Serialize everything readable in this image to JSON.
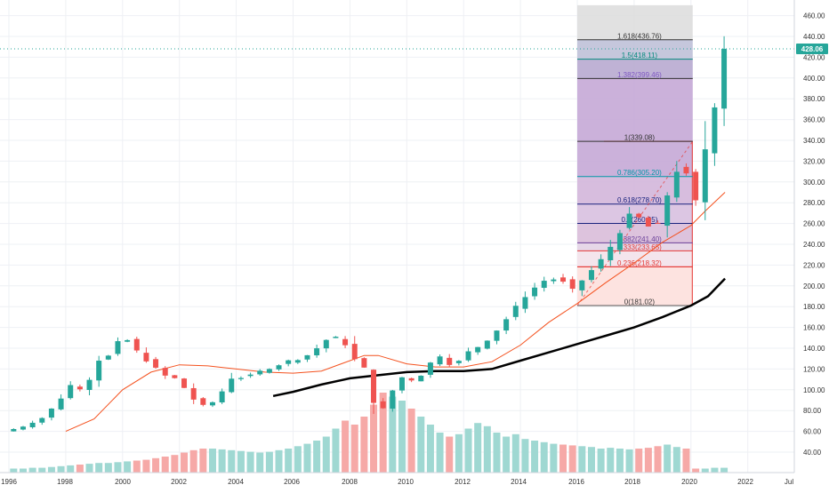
{
  "chart_data": {
    "type": "candlestick",
    "interval": "monthly",
    "x_ticks": [
      "1996",
      "1998",
      "2000",
      "2002",
      "2004",
      "2006",
      "2008",
      "2010",
      "2012",
      "2014",
      "2016",
      "2018",
      "2020",
      "2022",
      "Jul"
    ],
    "y_ticks": [
      40,
      60,
      80,
      100,
      120,
      140,
      160,
      180,
      200,
      220,
      240,
      260,
      280,
      300,
      320,
      340,
      360,
      380,
      400,
      420,
      440,
      460
    ],
    "y_tick_labels": [
      "40.00",
      "60.00",
      "80.00",
      "100.00",
      "120.00",
      "140.00",
      "160.00",
      "180.00",
      "200.00",
      "220.00",
      "240.00",
      "260.00",
      "280.00",
      "300.00",
      "320.00",
      "340.00",
      "360.00",
      "380.00",
      "400.00",
      "420.00",
      "440.00",
      "460.00"
    ],
    "ylim": [
      30,
      470
    ],
    "xlim": [
      1996.0,
      2022.8
    ],
    "last_price": 428.06,
    "last_price_label": "428.06",
    "colors": {
      "up": "#26a69a",
      "down": "#ef5350",
      "ma_fast": "#f4511e",
      "ma_slow": "#000000"
    },
    "price_anchors": [
      [
        1996.0,
        60
      ],
      [
        1996.6,
        64
      ],
      [
        1997.3,
        72
      ],
      [
        1997.9,
        88
      ],
      [
        1998.4,
        107
      ],
      [
        1998.8,
        98
      ],
      [
        1999.3,
        128
      ],
      [
        1999.7,
        133
      ],
      [
        2000.0,
        146
      ],
      [
        2000.4,
        148
      ],
      [
        2000.8,
        132
      ],
      [
        2001.2,
        124
      ],
      [
        2001.6,
        114
      ],
      [
        2002.0,
        111
      ],
      [
        2002.4,
        100
      ],
      [
        2002.8,
        86
      ],
      [
        2003.2,
        84
      ],
      [
        2003.6,
        96
      ],
      [
        2004.0,
        111
      ],
      [
        2004.5,
        112
      ],
      [
        2005.0,
        118
      ],
      [
        2005.5,
        122
      ],
      [
        2006.0,
        128
      ],
      [
        2006.5,
        130
      ],
      [
        2007.0,
        140
      ],
      [
        2007.5,
        152
      ],
      [
        2007.9,
        148
      ],
      [
        2008.3,
        130
      ],
      [
        2008.7,
        120
      ],
      [
        2009.0,
        88
      ],
      [
        2009.2,
        73
      ],
      [
        2009.5,
        93
      ],
      [
        2010.0,
        112
      ],
      [
        2010.5,
        108
      ],
      [
        2011.0,
        126
      ],
      [
        2011.4,
        134
      ],
      [
        2011.8,
        120
      ],
      [
        2012.2,
        135
      ],
      [
        2012.6,
        140
      ],
      [
        2013.0,
        148
      ],
      [
        2013.5,
        162
      ],
      [
        2014.0,
        180
      ],
      [
        2014.5,
        195
      ],
      [
        2015.0,
        205
      ],
      [
        2015.5,
        207
      ],
      [
        2016.0,
        196
      ],
      [
        2016.5,
        210
      ],
      [
        2017.0,
        225
      ],
      [
        2017.5,
        244
      ],
      [
        2018.0,
        268
      ],
      [
        2018.4,
        265
      ],
      [
        2018.9,
        250
      ],
      [
        2019.3,
        285
      ],
      [
        2019.8,
        320
      ],
      [
        2020.1,
        300
      ],
      [
        2020.2,
        258
      ],
      [
        2020.5,
        310
      ],
      [
        2020.9,
        362
      ],
      [
        2021.2,
        396
      ],
      [
        2021.3,
        428.06
      ]
    ],
    "ma_fast": [
      [
        1998.0,
        60
      ],
      [
        1999.0,
        72
      ],
      [
        2000.0,
        100
      ],
      [
        2001.0,
        117
      ],
      [
        2002.0,
        124
      ],
      [
        2003.0,
        123
      ],
      [
        2004.0,
        120
      ],
      [
        2005.0,
        117
      ],
      [
        2006.0,
        116
      ],
      [
        2007.0,
        118
      ],
      [
        2007.8,
        126
      ],
      [
        2008.5,
        133
      ],
      [
        2009.0,
        133
      ],
      [
        2010.0,
        125
      ],
      [
        2011.0,
        122
      ],
      [
        2012.0,
        122
      ],
      [
        2013.0,
        127
      ],
      [
        2014.0,
        143
      ],
      [
        2015.0,
        165
      ],
      [
        2016.0,
        183
      ],
      [
        2017.0,
        203
      ],
      [
        2018.0,
        222
      ],
      [
        2019.0,
        242
      ],
      [
        2020.0,
        258
      ],
      [
        2020.5,
        272
      ],
      [
        2021.2,
        290
      ]
    ],
    "ma_slow": [
      [
        2005.3,
        94
      ],
      [
        2006.0,
        98
      ],
      [
        2007.0,
        105
      ],
      [
        2008.0,
        111
      ],
      [
        2009.0,
        114
      ],
      [
        2010.0,
        117
      ],
      [
        2011.0,
        118
      ],
      [
        2012.0,
        118
      ],
      [
        2013.0,
        120
      ],
      [
        2014.0,
        128
      ],
      [
        2015.0,
        136
      ],
      [
        2016.0,
        144
      ],
      [
        2017.0,
        152
      ],
      [
        2018.0,
        160
      ],
      [
        2019.0,
        170
      ],
      [
        2020.0,
        181
      ],
      [
        2020.6,
        190
      ],
      [
        2021.2,
        207
      ]
    ],
    "fibonacci": {
      "start_x": 2016.0,
      "end_x": 2020.0,
      "base_price": 181.02,
      "levels": [
        {
          "label": "0(181.02)",
          "price": 181.02,
          "fill": "#fde0dc",
          "line": "#555555",
          "text_color": "#333333"
        },
        {
          "label": "0.236(218.32)",
          "price": 218.32,
          "fill": "#fde0dc",
          "line": "#e53935",
          "text_color": "#e53935"
        },
        {
          "label": "0.333(233.65)",
          "price": 233.65,
          "fill": "#f3e2ea",
          "line": "#e53935",
          "text_color": "#e53935"
        },
        {
          "label": "0.382(241.40)",
          "price": 241.4,
          "fill": "#e3d3e6",
          "line": "#6a3f99",
          "text_color": "#6a3f99"
        },
        {
          "label": "0.5(260.05)",
          "price": 260.05,
          "fill": "#d9bdd9",
          "line": "#1a237e",
          "text_color": "#1a237e"
        },
        {
          "label": "0.618(278.70)",
          "price": 278.7,
          "fill": "#d8c0e0",
          "line": "#1a237e",
          "text_color": "#1a237e"
        },
        {
          "label": "0.786(305.20)",
          "price": 305.2,
          "fill": "#d3b6da",
          "line": "#0097a7",
          "text_color": "#0097a7"
        },
        {
          "label": "1(339.08)",
          "price": 339.08,
          "fill": "#c5a9d6",
          "line": "#333333",
          "text_color": "#333333"
        },
        {
          "label": "1.382(399.46)",
          "price": 399.46,
          "fill": "#c5a9d6",
          "line": "#333333",
          "text_color": "#7e57c2"
        },
        {
          "label": "1.5(418.11)",
          "price": 418.11,
          "fill": "#b8aad0",
          "line": "#00897b",
          "text_color": "#00897b"
        },
        {
          "label": "1.618(436.76)",
          "price": 436.76,
          "fill": "#bfc1d8",
          "line": "#333333",
          "text_color": "#333333"
        }
      ],
      "top_fill": "#dcdcdc",
      "top_extent": 470,
      "trend_line_color": "#e53935",
      "ending_box": {
        "x1": 2016.0,
        "x2": 2020.0,
        "lo": 181.02,
        "hi": 339.08,
        "border": "#e53935"
      }
    },
    "volume_heights": [
      0.05,
      0.05,
      0.06,
      0.06,
      0.07,
      0.08,
      0.09,
      0.1,
      0.11,
      0.12,
      0.12,
      0.13,
      0.14,
      0.15,
      0.16,
      0.18,
      0.2,
      0.22,
      0.25,
      0.28,
      0.3,
      0.3,
      0.29,
      0.28,
      0.27,
      0.26,
      0.25,
      0.26,
      0.28,
      0.3,
      0.33,
      0.36,
      0.4,
      0.45,
      0.55,
      0.65,
      0.6,
      0.7,
      0.85,
      1.0,
      0.95,
      0.9,
      0.8,
      0.7,
      0.6,
      0.5,
      0.45,
      0.48,
      0.55,
      0.62,
      0.58,
      0.5,
      0.45,
      0.48,
      0.42,
      0.4,
      0.38,
      0.36,
      0.35,
      0.34,
      0.33,
      0.32,
      0.3,
      0.31,
      0.3,
      0.29,
      0.3,
      0.31,
      0.33,
      0.35,
      0.32,
      0.3
    ]
  }
}
